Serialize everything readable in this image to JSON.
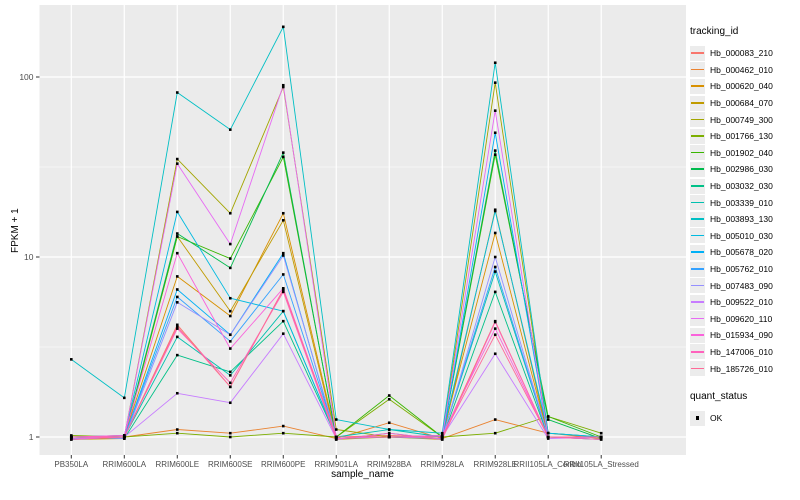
{
  "figure": {
    "panel_bg": "#EBEBEB",
    "grid_color": "#FFFFFF",
    "tick_color": "#333333",
    "tick_label_color": "#4D4D4D",
    "text_color": "#000000",
    "marker_color": "#000000",
    "legend_key_bg": "#ECECEC"
  },
  "legend": {
    "tracking_title": "tracking_id",
    "quant_title": "quant_status",
    "quant_entries": [
      {
        "label": "OK",
        "marker": "black-square-point"
      }
    ]
  },
  "chart_data": {
    "type": "line",
    "title": "",
    "xlabel": "sample_name",
    "ylabel": "FPKM + 1",
    "yscale": "log10",
    "ylim": [
      0.79,
      250
    ],
    "yticks": [
      1,
      10,
      100
    ],
    "ytick_labels": [
      "1",
      "10",
      "100"
    ],
    "minor_gridlines_at": [
      3.1623,
      31.623
    ],
    "grid": "on",
    "legend_title": "tracking_id",
    "legend_position": "right",
    "point_marker": "black-square",
    "categories": [
      "PB350LA",
      "RRIM600LA",
      "RRIM600LE",
      "RRIM600SE",
      "RRIM600PE",
      "RRIM901LA",
      "RRIM928BA",
      "RRIM928LA",
      "RRIM928LE",
      "RRII105LA_Control",
      "RRII105LA_Stressed"
    ],
    "series": [
      {
        "name": "Hb_000083_210",
        "color": "#F8766D",
        "values": [
          1.0,
          1.0,
          4.2,
          1.9,
          6.6,
          1.0,
          1.02,
          1.0,
          4.4,
          1.0,
          1.0
        ]
      },
      {
        "name": "Hb_000462_010",
        "color": "#EA8331",
        "values": [
          0.98,
          1.0,
          1.1,
          1.05,
          1.15,
          0.98,
          1.2,
          0.98,
          1.25,
          1.05,
          0.98
        ]
      },
      {
        "name": "Hb_000620_040",
        "color": "#D89000",
        "values": [
          1.0,
          1.02,
          7.8,
          4.7,
          17.5,
          1.0,
          1.0,
          1.02,
          13.6,
          1.0,
          1.0
        ]
      },
      {
        "name": "Hb_000684_070",
        "color": "#C09B00",
        "values": [
          0.97,
          0.98,
          13.0,
          5.0,
          16.0,
          0.97,
          1.0,
          0.97,
          18.3,
          1.0,
          0.97
        ]
      },
      {
        "name": "Hb_000749_300",
        "color": "#A3A500",
        "values": [
          1.0,
          1.0,
          35.0,
          17.5,
          88.0,
          1.1,
          1.0,
          1.0,
          93.0,
          1.05,
          1.0
        ]
      },
      {
        "name": "Hb_001766_130",
        "color": "#7CAE00",
        "values": [
          1.02,
          1.0,
          1.05,
          1.0,
          1.05,
          1.0,
          1.62,
          1.0,
          1.05,
          1.3,
          1.05
        ]
      },
      {
        "name": "Hb_001902_040",
        "color": "#39B600",
        "values": [
          1.0,
          1.0,
          13.0,
          9.8,
          36.0,
          1.0,
          1.7,
          1.0,
          37.0,
          1.3,
          1.0
        ]
      },
      {
        "name": "Hb_002986_030",
        "color": "#00BB4E",
        "values": [
          0.98,
          1.0,
          13.5,
          8.7,
          38.0,
          0.98,
          1.0,
          1.0,
          39.0,
          1.25,
          0.98
        ]
      },
      {
        "name": "Hb_003032_030",
        "color": "#00C087",
        "values": [
          1.0,
          0.98,
          2.85,
          2.3,
          4.4,
          1.0,
          1.0,
          0.98,
          6.4,
          1.0,
          1.0
        ]
      },
      {
        "name": "Hb_003339_010",
        "color": "#00C0AF",
        "values": [
          1.0,
          1.0,
          3.6,
          2.2,
          5.0,
          1.0,
          1.1,
          1.0,
          8.3,
          1.0,
          1.0
        ]
      },
      {
        "name": "Hb_003893_130",
        "color": "#00BFC4",
        "values": [
          2.7,
          1.65,
          82.0,
          51.0,
          190.0,
          1.25,
          1.1,
          1.05,
          120.0,
          1.05,
          1.0
        ]
      },
      {
        "name": "Hb_005010_030",
        "color": "#00BAE0",
        "values": [
          1.0,
          1.02,
          17.8,
          5.9,
          5.0,
          1.0,
          1.0,
          1.02,
          18.0,
          1.05,
          1.0
        ]
      },
      {
        "name": "Hb_005678_020",
        "color": "#00B0F6",
        "values": [
          0.97,
          1.0,
          6.6,
          3.7,
          10.5,
          0.97,
          1.05,
          0.97,
          49.0,
          1.0,
          0.97
        ]
      },
      {
        "name": "Hb_005762_010",
        "color": "#35A2FF",
        "values": [
          1.0,
          1.0,
          6.0,
          3.4,
          8.0,
          1.0,
          1.0,
          1.0,
          8.8,
          1.0,
          1.0
        ]
      },
      {
        "name": "Hb_007483_090",
        "color": "#9590FF",
        "values": [
          1.0,
          0.98,
          5.6,
          3.7,
          10.2,
          1.0,
          1.0,
          0.98,
          10.0,
          1.0,
          1.0
        ]
      },
      {
        "name": "Hb_009522_010",
        "color": "#C77CFF",
        "values": [
          0.98,
          1.0,
          1.75,
          1.55,
          3.75,
          0.98,
          1.0,
          1.0,
          2.9,
          0.98,
          1.0
        ]
      },
      {
        "name": "Hb_009620_110",
        "color": "#E76BF3",
        "values": [
          1.0,
          1.0,
          33.0,
          11.8,
          90.0,
          1.0,
          1.0,
          1.0,
          65.0,
          1.0,
          1.0
        ]
      },
      {
        "name": "Hb_015934_090",
        "color": "#FA62DB",
        "values": [
          1.0,
          1.02,
          10.5,
          3.1,
          6.7,
          1.0,
          1.0,
          1.02,
          4.0,
          1.0,
          1.0
        ]
      },
      {
        "name": "Hb_147006_010",
        "color": "#FF62BC",
        "values": [
          0.97,
          1.0,
          4.0,
          2.0,
          6.4,
          0.97,
          1.05,
          0.97,
          4.35,
          1.0,
          0.97
        ]
      },
      {
        "name": "Hb_185726_010",
        "color": "#FF6A98",
        "values": [
          1.0,
          1.0,
          4.1,
          1.9,
          6.6,
          1.0,
          1.0,
          1.0,
          3.7,
          1.0,
          1.0
        ]
      }
    ]
  }
}
